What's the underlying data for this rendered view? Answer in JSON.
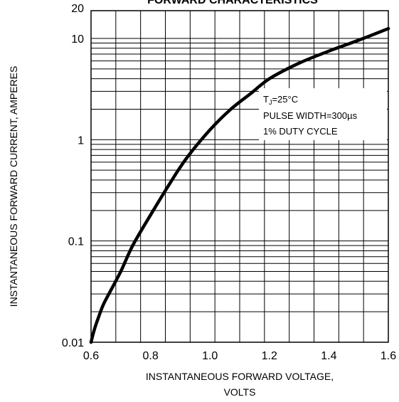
{
  "chart_data": {
    "type": "line",
    "title": "FORWARD CHARACTERISTICS",
    "xlabel_line1": "INSTANTANEOUS FORWARD VOLTAGE,",
    "xlabel_line2": "VOLTS",
    "ylabel": "INSTANTANEOUS FORWARD CURRENT, AMPERES",
    "xlim": [
      0.6,
      1.6
    ],
    "ylim": [
      0.01,
      20
    ],
    "y_scale": "log",
    "grid": true,
    "x_ticks": [
      {
        "value": 0.6,
        "label": "0.6"
      },
      {
        "value": 0.8,
        "label": "0.8"
      },
      {
        "value": 1.0,
        "label": "1.0"
      },
      {
        "value": 1.2,
        "label": "1.2"
      },
      {
        "value": 1.4,
        "label": "1.4"
      },
      {
        "value": 1.6,
        "label": "1.6"
      }
    ],
    "y_ticks": [
      {
        "value": 0.01,
        "label": "0.01"
      },
      {
        "value": 0.1,
        "label": "0.1"
      },
      {
        "value": 1,
        "label": "1"
      },
      {
        "value": 10,
        "label": "10"
      },
      {
        "value": 20,
        "label": "20"
      }
    ],
    "annotations": {
      "tj_prefix": "T",
      "tj_sub": "J",
      "tj_value": "=25°C",
      "pulse": "PULSE WIDTH=300µs",
      "duty": "1% DUTY CYCLE"
    },
    "series": [
      {
        "x": [
          0.6,
          0.61,
          0.62,
          0.64,
          0.66,
          0.7,
          0.74,
          0.8,
          0.86,
          0.92,
          1.0,
          1.07,
          1.14,
          1.2,
          1.3,
          1.4,
          1.5,
          1.6
        ],
        "y": [
          0.01,
          0.013,
          0.016,
          0.023,
          0.03,
          0.05,
          0.09,
          0.18,
          0.35,
          0.65,
          1.25,
          2.0,
          2.9,
          4.0,
          5.7,
          7.5,
          9.6,
          12.5
        ]
      }
    ]
  }
}
